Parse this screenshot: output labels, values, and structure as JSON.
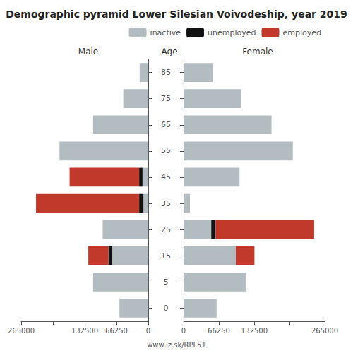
{
  "chart_data": {
    "type": "bar",
    "orientation": "horizontal",
    "stacked": true,
    "grid": false,
    "legend": "upper right",
    "title": "Demographic pyramid Lower Silesian Voivodeship, year 2019",
    "ylabel": "Age",
    "annotation": "www.iz.sk/RPL51",
    "categories": [
      "85",
      "75",
      "65",
      "55",
      "45",
      "35",
      "25",
      "15",
      "5",
      "0"
    ],
    "xlim": [
      0,
      265000
    ],
    "xticks": [
      0,
      66250,
      132500,
      {
        "value": 198750,
        "label": ""
      },
      265000
    ],
    "groups": [
      {
        "name": "Male",
        "series": [
          {
            "name": "inactive",
            "color": "#b3bcc0",
            "values": [
              18000,
              52000,
              115000,
              185000,
              12000,
              10000,
              95000,
              75000,
              115000,
              60000
            ]
          },
          {
            "name": "unemployed",
            "color": "#111111",
            "values": [
              0,
              0,
              0,
              0,
              7000,
              9000,
              0,
              8000,
              0,
              0
            ]
          },
          {
            "name": "employed",
            "color": "#c0392b",
            "values": [
              0,
              0,
              0,
              0,
              145000,
              215000,
              0,
              42000,
              0,
              0
            ]
          }
        ]
      },
      {
        "name": "Female",
        "series": [
          {
            "name": "inactive",
            "color": "#b3bcc0",
            "values": [
              55000,
              108000,
              165000,
              205000,
              105000,
              12000,
              52000,
              98000,
              118000,
              62000
            ]
          },
          {
            "name": "unemployed",
            "color": "#111111",
            "values": [
              0,
              0,
              0,
              0,
              0,
              0,
              8000,
              0,
              0,
              0
            ]
          },
          {
            "name": "employed",
            "color": "#c0392b",
            "values": [
              0,
              0,
              0,
              0,
              0,
              0,
              185000,
              35000,
              0,
              0
            ]
          }
        ]
      }
    ]
  }
}
